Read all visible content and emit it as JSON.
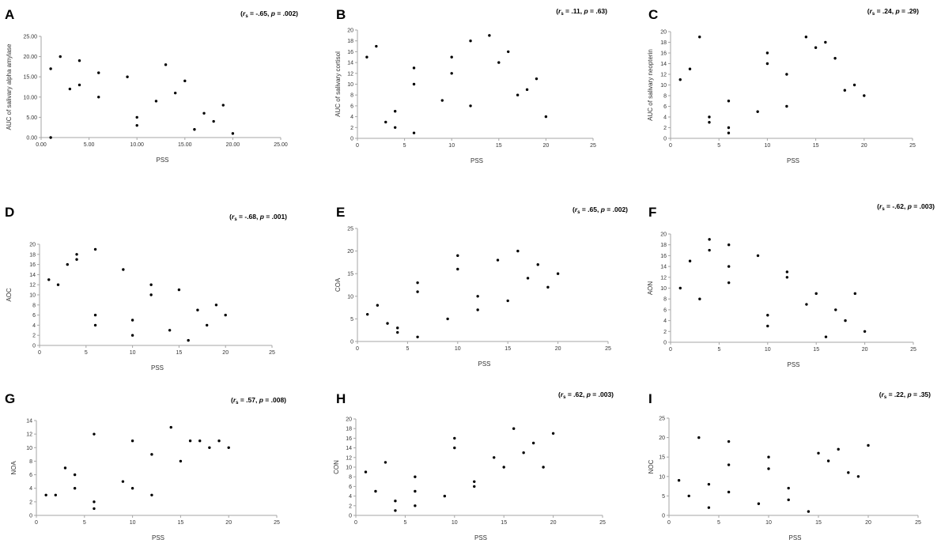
{
  "chart_data": [
    {
      "letter": "A",
      "type": "scatter",
      "title": "",
      "xlabel": "PSS",
      "ylabel": "AUC of salivary alpha amylase",
      "stat": {
        "rho": "-.65",
        "p": ".002"
      },
      "xlim": [
        0,
        25
      ],
      "ylim": [
        0,
        25
      ],
      "xticks": [
        0,
        5,
        10,
        15,
        20,
        25
      ],
      "xtick_labels": [
        "0.00",
        "5.00",
        "10.00",
        "15.00",
        "20.00",
        "25.00"
      ],
      "yticks": [
        0,
        5,
        10,
        15,
        20,
        25
      ],
      "ytick_labels": [
        "0.00",
        "5.00",
        "10.00",
        "15.00",
        "20.00",
        "25.00"
      ],
      "x": [
        1,
        1,
        2,
        3,
        4,
        4,
        6,
        6,
        9,
        10,
        10,
        12,
        13,
        14,
        15,
        16,
        17,
        18,
        19,
        20
      ],
      "y": [
        17,
        0,
        20,
        12,
        19,
        13,
        16,
        10,
        15,
        5,
        3,
        9,
        18,
        11,
        14,
        2,
        6,
        4,
        8,
        1
      ]
    },
    {
      "letter": "B",
      "type": "scatter",
      "title": "",
      "xlabel": "PSS",
      "ylabel": "AUC of salivary cortisol",
      "stat": {
        "rho": ".11",
        "p": ".63"
      },
      "xlim": [
        0,
        25
      ],
      "ylim": [
        0,
        20
      ],
      "xticks": [
        0,
        5,
        10,
        15,
        20,
        25
      ],
      "xtick_labels": [
        "0",
        "5",
        "10",
        "15",
        "20",
        "25"
      ],
      "yticks": [
        0,
        2,
        4,
        6,
        8,
        10,
        12,
        14,
        16,
        18,
        20
      ],
      "ytick_labels": [
        "0",
        "2",
        "4",
        "6",
        "8",
        "10",
        "12",
        "14",
        "16",
        "18",
        "20"
      ],
      "x": [
        1,
        2,
        3,
        4,
        4,
        6,
        6,
        6,
        9,
        10,
        10,
        12,
        12,
        14,
        15,
        16,
        17,
        18,
        19,
        20
      ],
      "y": [
        15,
        17,
        3,
        5,
        2,
        13,
        10,
        1,
        7,
        15,
        12,
        18,
        6,
        19,
        14,
        16,
        8,
        9,
        11,
        4
      ]
    },
    {
      "letter": "C",
      "type": "scatter",
      "title": "",
      "xlabel": "PSS",
      "ylabel": "AUC of salivary neopterin",
      "stat": {
        "rho": ".24",
        "p": ".29"
      },
      "xlim": [
        0,
        25
      ],
      "ylim": [
        0,
        20
      ],
      "xticks": [
        0,
        5,
        10,
        15,
        20,
        25
      ],
      "xtick_labels": [
        "0",
        "5",
        "10",
        "15",
        "20",
        "25"
      ],
      "yticks": [
        0,
        2,
        4,
        6,
        8,
        10,
        12,
        14,
        16,
        18,
        20
      ],
      "ytick_labels": [
        "0",
        "2",
        "4",
        "6",
        "8",
        "10",
        "12",
        "14",
        "16",
        "18",
        "20"
      ],
      "x": [
        1,
        2,
        3,
        4,
        4,
        6,
        6,
        6,
        9,
        10,
        10,
        12,
        12,
        14,
        15,
        16,
        17,
        18,
        19,
        20
      ],
      "y": [
        11,
        13,
        19,
        4,
        3,
        7,
        2,
        1,
        5,
        16,
        14,
        12,
        6,
        19,
        17,
        18,
        15,
        9,
        10,
        8
      ]
    },
    {
      "letter": "D",
      "type": "scatter",
      "title": "",
      "xlabel": "PSS",
      "ylabel": "AOC",
      "stat": {
        "rho": "-.68",
        "p": ".001"
      },
      "xlim": [
        0,
        25
      ],
      "ylim": [
        0,
        20
      ],
      "xticks": [
        0,
        5,
        10,
        15,
        20,
        25
      ],
      "xtick_labels": [
        "0",
        "5",
        "10",
        "15",
        "20",
        "25"
      ],
      "yticks": [
        0,
        2,
        4,
        6,
        8,
        10,
        12,
        14,
        16,
        18,
        20
      ],
      "ytick_labels": [
        "0",
        "2",
        "4",
        "6",
        "8",
        "10",
        "12",
        "14",
        "16",
        "18",
        "20"
      ],
      "x": [
        1,
        2,
        3,
        4,
        4,
        6,
        6,
        6,
        9,
        10,
        10,
        12,
        12,
        14,
        15,
        16,
        17,
        18,
        19,
        20
      ],
      "y": [
        13,
        12,
        16,
        18,
        17,
        19,
        6,
        4,
        15,
        5,
        2,
        12,
        10,
        3,
        11,
        1,
        7,
        4,
        8,
        6
      ]
    },
    {
      "letter": "E",
      "type": "scatter",
      "title": "",
      "xlabel": "PSS",
      "ylabel": "COA",
      "stat": {
        "rho": ".65",
        "p": ".002"
      },
      "xlim": [
        0,
        25
      ],
      "ylim": [
        0,
        25
      ],
      "xticks": [
        0,
        5,
        10,
        15,
        20,
        25
      ],
      "xtick_labels": [
        "0",
        "5",
        "10",
        "15",
        "20",
        "25"
      ],
      "yticks": [
        0,
        5,
        10,
        15,
        20,
        25
      ],
      "ytick_labels": [
        "0",
        "5",
        "10",
        "15",
        "20",
        "25"
      ],
      "x": [
        1,
        2,
        3,
        4,
        4,
        6,
        6,
        6,
        9,
        10,
        10,
        12,
        12,
        14,
        15,
        16,
        17,
        18,
        19,
        20
      ],
      "y": [
        6,
        8,
        4,
        3,
        2,
        13,
        11,
        1,
        5,
        19,
        16,
        10,
        7,
        18,
        9,
        20,
        14,
        17,
        12,
        15
      ]
    },
    {
      "letter": "F",
      "type": "scatter",
      "title": "",
      "xlabel": "PSS",
      "ylabel": "AON",
      "stat": {
        "rho": "-.62",
        "p": ".003"
      },
      "xlim": [
        0,
        25
      ],
      "ylim": [
        0,
        20
      ],
      "xticks": [
        0,
        5,
        10,
        15,
        20,
        25
      ],
      "xtick_labels": [
        "0",
        "5",
        "10",
        "15",
        "20",
        "25"
      ],
      "yticks": [
        0,
        2,
        4,
        6,
        8,
        10,
        12,
        14,
        16,
        18,
        20
      ],
      "ytick_labels": [
        "0",
        "2",
        "4",
        "6",
        "8",
        "10",
        "12",
        "14",
        "16",
        "18",
        "20"
      ],
      "x": [
        1,
        2,
        3,
        4,
        4,
        6,
        6,
        6,
        9,
        10,
        10,
        12,
        12,
        14,
        15,
        16,
        17,
        18,
        19,
        20
      ],
      "y": [
        10,
        15,
        8,
        19,
        17,
        18,
        14,
        11,
        16,
        5,
        3,
        13,
        12,
        7,
        9,
        1,
        6,
        4,
        9,
        2
      ]
    },
    {
      "letter": "G",
      "type": "scatter",
      "title": "",
      "xlabel": "PSS",
      "ylabel": "NOA",
      "stat": {
        "rho": ".57",
        "p": ".008"
      },
      "xlim": [
        0,
        25
      ],
      "ylim": [
        0,
        14
      ],
      "xticks": [
        0,
        5,
        10,
        15,
        20,
        25
      ],
      "xtick_labels": [
        "0",
        "5",
        "10",
        "15",
        "20",
        "25"
      ],
      "yticks": [
        0,
        2,
        4,
        6,
        8,
        10,
        12,
        14
      ],
      "ytick_labels": [
        "0",
        "2",
        "4",
        "6",
        "8",
        "10",
        "12",
        "14"
      ],
      "x": [
        1,
        2,
        3,
        4,
        4,
        6,
        6,
        6,
        9,
        10,
        10,
        12,
        12,
        14,
        15,
        16,
        17,
        18,
        19,
        20
      ],
      "y": [
        3,
        3,
        7,
        6,
        4,
        12,
        2,
        1,
        5,
        11,
        4,
        9,
        3,
        13,
        8,
        11,
        11,
        10,
        11,
        10
      ]
    },
    {
      "letter": "H",
      "type": "scatter",
      "title": "",
      "xlabel": "PSS",
      "ylabel": "CON",
      "stat": {
        "rho": ".62",
        "p": ".003"
      },
      "xlim": [
        0,
        25
      ],
      "ylim": [
        0,
        20
      ],
      "xticks": [
        0,
        5,
        10,
        15,
        20,
        25
      ],
      "xtick_labels": [
        "0",
        "5",
        "10",
        "15",
        "20",
        "25"
      ],
      "yticks": [
        0,
        2,
        4,
        6,
        8,
        10,
        12,
        14,
        16,
        18,
        20
      ],
      "ytick_labels": [
        "0",
        "2",
        "4",
        "6",
        "8",
        "10",
        "12",
        "14",
        "16",
        "18",
        "20"
      ],
      "x": [
        1,
        2,
        3,
        4,
        4,
        6,
        6,
        6,
        9,
        10,
        10,
        12,
        12,
        14,
        15,
        16,
        17,
        18,
        19,
        20
      ],
      "y": [
        9,
        5,
        11,
        3,
        1,
        8,
        5,
        2,
        4,
        16,
        14,
        7,
        6,
        12,
        10,
        18,
        13,
        15,
        10,
        17
      ]
    },
    {
      "letter": "I",
      "type": "scatter",
      "title": "",
      "xlabel": "PSS",
      "ylabel": "NOC",
      "stat": {
        "rho": ".22",
        "p": ".35"
      },
      "xlim": [
        0,
        25
      ],
      "ylim": [
        0,
        25
      ],
      "xticks": [
        0,
        5,
        10,
        15,
        20,
        25
      ],
      "xtick_labels": [
        "0",
        "5",
        "10",
        "15",
        "20",
        "25"
      ],
      "yticks": [
        0,
        5,
        10,
        15,
        20,
        25
      ],
      "ytick_labels": [
        "0",
        "5",
        "10",
        "15",
        "20",
        "25"
      ],
      "x": [
        1,
        2,
        3,
        4,
        4,
        6,
        6,
        6,
        9,
        10,
        10,
        12,
        12,
        14,
        15,
        16,
        17,
        18,
        19,
        20
      ],
      "y": [
        9,
        5,
        20,
        8,
        2,
        19,
        13,
        6,
        3,
        15,
        12,
        7,
        4,
        1,
        16,
        14,
        17,
        11,
        10,
        18
      ]
    }
  ]
}
